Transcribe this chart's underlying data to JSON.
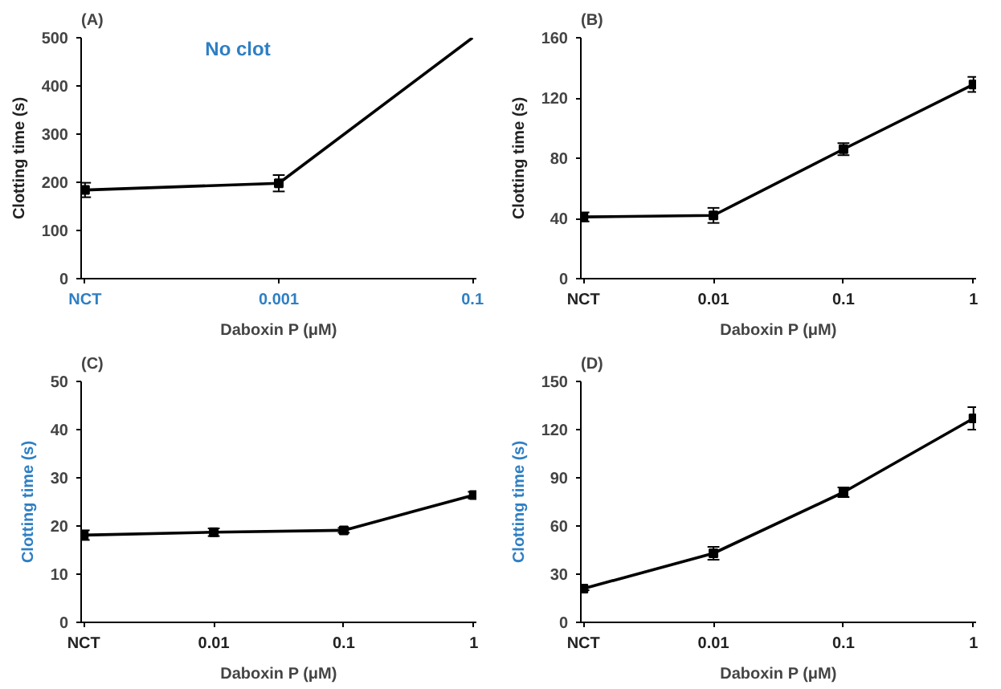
{
  "chart_data": [
    {
      "type": "line",
      "title": "(A)",
      "xlabel": "Daboxin P (μM)",
      "ylabel": "Clotting time (s)",
      "categories": [
        "NCT",
        "0.001",
        "0.1"
      ],
      "ylim": [
        0,
        500
      ],
      "yticks": [
        0,
        100,
        200,
        300,
        400,
        500
      ],
      "grid": false,
      "marker": "square",
      "series": [
        {
          "color": "#000000",
          "values": [
            184,
            198,
            null
          ],
          "errors": [
            15,
            17,
            null
          ]
        },
        {
          "color": "#000000",
          "values": [
            null,
            198,
            500
          ],
          "marker": "none"
        }
      ],
      "annotations": [
        "No clot"
      ]
    },
    {
      "type": "line",
      "title": "(B)",
      "xlabel": "Daboxin P (μM)",
      "ylabel": "Clotting time (s)",
      "categories": [
        "NCT",
        "0.01",
        "0.1",
        "1"
      ],
      "ylim": [
        0,
        160
      ],
      "yticks": [
        0,
        40,
        80,
        120,
        160
      ],
      "grid": false,
      "marker": "square",
      "series": [
        {
          "color": "#000000",
          "values": [
            41,
            42,
            86,
            129
          ],
          "errors": [
            3,
            5,
            4,
            5
          ]
        }
      ]
    },
    {
      "type": "line",
      "title": "(C)",
      "xlabel": "Daboxin P (μM)",
      "ylabel": "Clotting time (s)",
      "categories": [
        "NCT",
        "0.01",
        "0.1",
        "1"
      ],
      "ylim": [
        0,
        50
      ],
      "yticks": [
        0,
        10,
        20,
        30,
        40,
        50
      ],
      "grid": false,
      "marker": "square",
      "series": [
        {
          "color": "#000000",
          "values": [
            18.1,
            18.7,
            19.1,
            26.4
          ],
          "errors": [
            1,
            0.8,
            0.5,
            0.7
          ]
        }
      ]
    },
    {
      "type": "line",
      "title": "(D)",
      "xlabel": "Daboxin P (μM)",
      "ylabel": "Clotting time (s)",
      "categories": [
        "NCT",
        "0.01",
        "0.1",
        "1"
      ],
      "ylim": [
        0,
        150
      ],
      "yticks": [
        0,
        30,
        60,
        90,
        120,
        150
      ],
      "grid": false,
      "marker": "square",
      "series": [
        {
          "color": "#000000",
          "values": [
            21,
            43,
            81,
            127
          ],
          "errors": [
            1,
            4,
            3,
            7
          ]
        }
      ]
    }
  ]
}
